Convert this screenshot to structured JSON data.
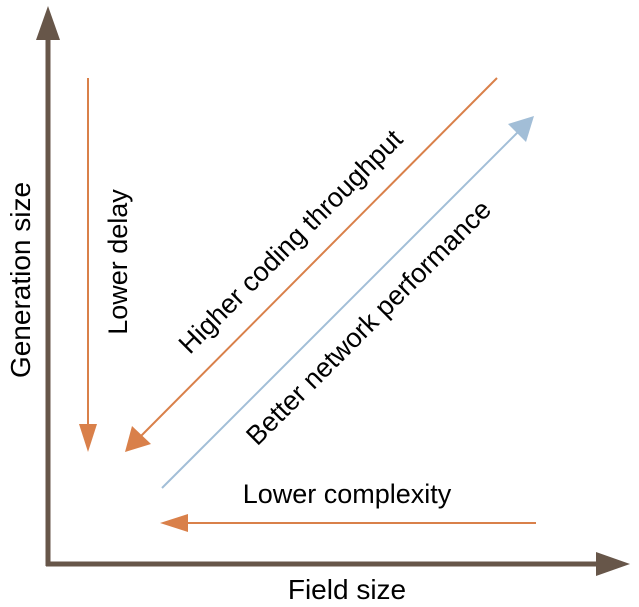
{
  "axes": {
    "x_label": "Field size",
    "y_label": "Generation size",
    "color": "#675649"
  },
  "annotations": {
    "lower_delay": "Lower delay",
    "higher_coding_throughput": "Higher coding throughput",
    "better_network_performance": "Better network performance",
    "lower_complexity": "Lower complexity"
  },
  "colors": {
    "orange_arrow": "#D9804A",
    "blue_arrow": "#A2BED7"
  }
}
